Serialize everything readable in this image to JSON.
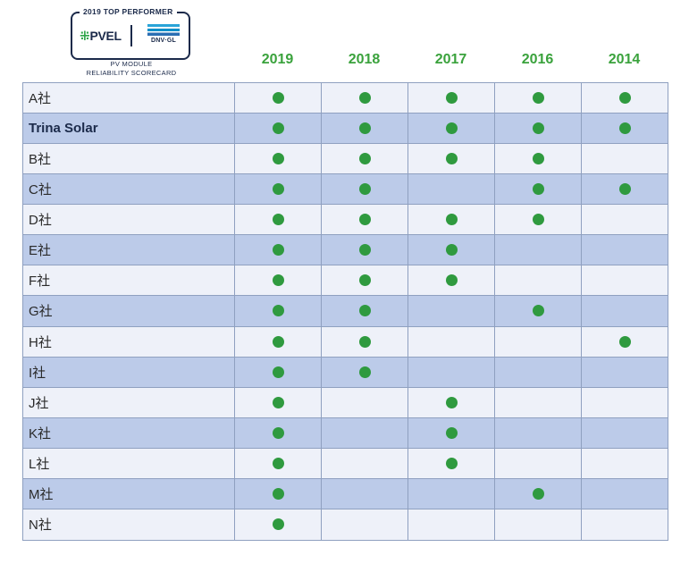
{
  "badge": {
    "title": "2019 TOP PERFORMER",
    "pvel_logo": "PVEL",
    "dnv_logo": "DNV·GL",
    "subtitle_line1": "PV MODULE",
    "subtitle_line2": "RELIABILITY SCORECARD"
  },
  "colors": {
    "year_header": "#3aa23c",
    "dot": "#2f9a3f",
    "row_light": "#eef1f9",
    "row_dark": "#bccbe9",
    "grid_line": "#8fa0c0"
  },
  "chart_data": {
    "type": "table",
    "columns": [
      "2019",
      "2018",
      "2017",
      "2016",
      "2014"
    ],
    "rows": [
      {
        "name": "A社",
        "bold": false,
        "marks": [
          1,
          1,
          1,
          1,
          1
        ]
      },
      {
        "name": "Trina Solar",
        "bold": true,
        "marks": [
          1,
          1,
          1,
          1,
          1
        ]
      },
      {
        "name": "B社",
        "bold": false,
        "marks": [
          1,
          1,
          1,
          1,
          0
        ]
      },
      {
        "name": "C社",
        "bold": false,
        "marks": [
          1,
          1,
          0,
          1,
          1
        ]
      },
      {
        "name": "D社",
        "bold": false,
        "marks": [
          1,
          1,
          1,
          1,
          0
        ]
      },
      {
        "name": "E社",
        "bold": false,
        "marks": [
          1,
          1,
          1,
          0,
          0
        ]
      },
      {
        "name": "F社",
        "bold": false,
        "marks": [
          1,
          1,
          1,
          0,
          0
        ]
      },
      {
        "name": "G社",
        "bold": false,
        "marks": [
          1,
          1,
          0,
          1,
          0
        ]
      },
      {
        "name": "H社",
        "bold": false,
        "marks": [
          1,
          1,
          0,
          0,
          1
        ]
      },
      {
        "name": "I社",
        "bold": false,
        "marks": [
          1,
          1,
          0,
          0,
          0
        ]
      },
      {
        "name": "J社",
        "bold": false,
        "marks": [
          1,
          0,
          1,
          0,
          0
        ]
      },
      {
        "name": "K社",
        "bold": false,
        "marks": [
          1,
          0,
          1,
          0,
          0
        ]
      },
      {
        "name": "L社",
        "bold": false,
        "marks": [
          1,
          0,
          1,
          0,
          0
        ]
      },
      {
        "name": "M社",
        "bold": false,
        "marks": [
          1,
          0,
          0,
          1,
          0
        ]
      },
      {
        "name": "N社",
        "bold": false,
        "marks": [
          1,
          0,
          0,
          0,
          0
        ]
      }
    ]
  }
}
